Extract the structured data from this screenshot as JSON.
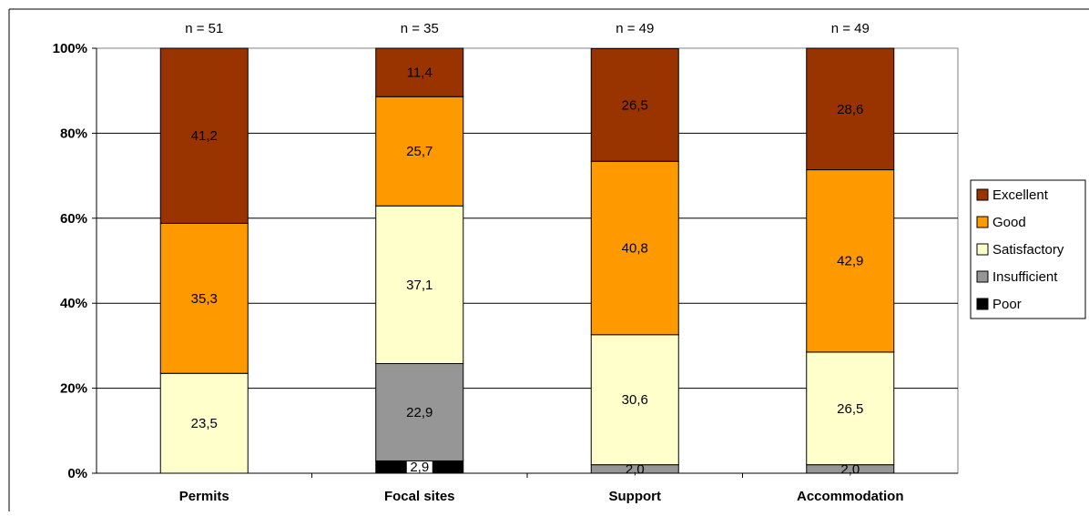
{
  "chart_data": {
    "type": "bar",
    "stacked": true,
    "normalized": true,
    "categories": [
      "Permits",
      "Focal sites",
      "Support",
      "Accommodation"
    ],
    "sample_sizes": [
      "n = 51",
      "n = 35",
      "n = 49",
      "n = 49"
    ],
    "series": [
      {
        "name": "Poor",
        "color": "#000000",
        "values": [
          0,
          2.9,
          0,
          0
        ],
        "labels": [
          "",
          "2,9",
          "",
          ""
        ]
      },
      {
        "name": "Insufficient",
        "color": "#969696",
        "values": [
          0,
          22.9,
          2.0,
          2.0
        ],
        "labels": [
          "",
          "22,9",
          "2,0",
          "2,0"
        ]
      },
      {
        "name": "Satisfactory",
        "color": "#FFFFCC",
        "values": [
          23.5,
          37.1,
          30.6,
          26.5
        ],
        "labels": [
          "23,5",
          "37,1",
          "30,6",
          "26,5"
        ]
      },
      {
        "name": "Good",
        "color": "#FF9900",
        "values": [
          35.3,
          25.7,
          40.8,
          42.9
        ],
        "labels": [
          "35,3",
          "25,7",
          "40,8",
          "42,9"
        ]
      },
      {
        "name": "Excellent",
        "color": "#993300",
        "values": [
          41.2,
          11.4,
          26.5,
          28.6
        ],
        "labels": [
          "41,2",
          "11,4",
          "26,5",
          "28,6"
        ]
      }
    ],
    "legend_order": [
      "Excellent",
      "Good",
      "Satisfactory",
      "Insufficient",
      "Poor"
    ],
    "y_ticks": [
      "0%",
      "20%",
      "40%",
      "60%",
      "80%",
      "100%"
    ],
    "ylim": [
      0,
      100
    ],
    "grid": true,
    "legend_position": "right"
  }
}
